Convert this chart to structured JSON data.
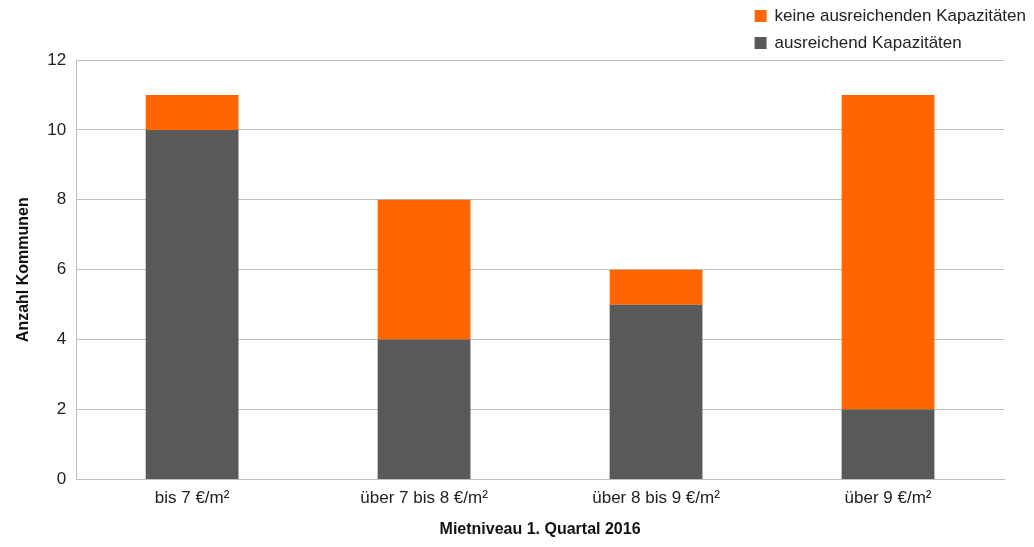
{
  "chart_data": {
    "type": "bar",
    "stacked": true,
    "xlabel": "Mietniveau 1. Quartal 2016",
    "ylabel": "Anzahl Kommunen",
    "categories": [
      "bis 7 €/m²",
      "über 7 bis 8 €/m²",
      "über 8 bis 9 €/m²",
      "über 9 €/m²"
    ],
    "series": [
      {
        "name": "ausreichend Kapazitäten",
        "color": "#595959",
        "values": [
          10,
          4,
          5,
          2
        ]
      },
      {
        "name": "keine ausreichenden Kapazitäten",
        "color": "#ff6600",
        "values": [
          1,
          4,
          1,
          9
        ]
      }
    ],
    "ylim": [
      0,
      12
    ],
    "yticks": [
      0,
      2,
      4,
      6,
      8,
      10,
      12
    ],
    "grid": "y",
    "legend": "top right"
  }
}
